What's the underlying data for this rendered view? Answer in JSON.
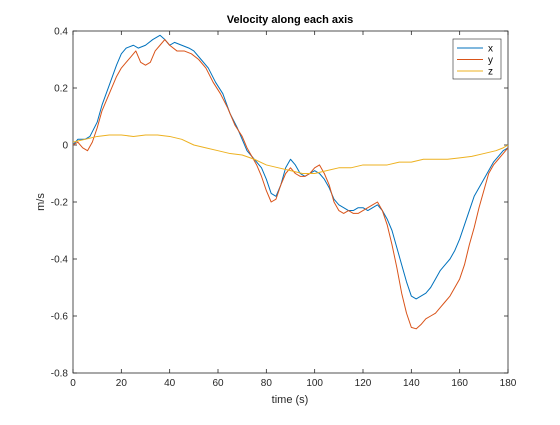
{
  "chart_data": {
    "type": "line",
    "title": "Velocity along each axis",
    "xlabel": "time (s)",
    "ylabel": "m/s",
    "xlim": [
      0,
      180
    ],
    "ylim": [
      -0.8,
      0.4
    ],
    "xticks": [
      0,
      20,
      40,
      60,
      80,
      100,
      120,
      140,
      160,
      180
    ],
    "yticks": [
      -0.8,
      -0.6,
      -0.4,
      -0.2,
      0,
      0.2,
      0.4
    ],
    "grid": false,
    "legend_position": "top-right",
    "series": [
      {
        "name": "x",
        "color": "#0072BD",
        "points": [
          [
            0,
            0.0
          ],
          [
            2,
            0.02
          ],
          [
            5,
            0.02
          ],
          [
            7,
            0.03
          ],
          [
            10,
            0.08
          ],
          [
            12,
            0.14
          ],
          [
            15,
            0.21
          ],
          [
            18,
            0.28
          ],
          [
            20,
            0.32
          ],
          [
            22,
            0.34
          ],
          [
            25,
            0.35
          ],
          [
            27,
            0.34
          ],
          [
            30,
            0.35
          ],
          [
            33,
            0.37
          ],
          [
            36,
            0.385
          ],
          [
            38,
            0.37
          ],
          [
            40,
            0.35
          ],
          [
            42,
            0.36
          ],
          [
            45,
            0.35
          ],
          [
            48,
            0.34
          ],
          [
            50,
            0.33
          ],
          [
            53,
            0.3
          ],
          [
            56,
            0.27
          ],
          [
            59,
            0.22
          ],
          [
            62,
            0.18
          ],
          [
            65,
            0.11
          ],
          [
            68,
            0.06
          ],
          [
            70,
            0.02
          ],
          [
            72,
            -0.02
          ],
          [
            75,
            -0.05
          ],
          [
            78,
            -0.08
          ],
          [
            80,
            -0.12
          ],
          [
            82,
            -0.17
          ],
          [
            84,
            -0.18
          ],
          [
            86,
            -0.14
          ],
          [
            88,
            -0.08
          ],
          [
            90,
            -0.05
          ],
          [
            92,
            -0.07
          ],
          [
            94,
            -0.1
          ],
          [
            96,
            -0.11
          ],
          [
            98,
            -0.1
          ],
          [
            100,
            -0.09
          ],
          [
            102,
            -0.1
          ],
          [
            104,
            -0.12
          ],
          [
            106,
            -0.15
          ],
          [
            108,
            -0.19
          ],
          [
            110,
            -0.21
          ],
          [
            112,
            -0.22
          ],
          [
            114,
            -0.23
          ],
          [
            116,
            -0.23
          ],
          [
            118,
            -0.22
          ],
          [
            120,
            -0.22
          ],
          [
            122,
            -0.23
          ],
          [
            124,
            -0.22
          ],
          [
            126,
            -0.21
          ],
          [
            128,
            -0.23
          ],
          [
            130,
            -0.26
          ],
          [
            132,
            -0.3
          ],
          [
            134,
            -0.36
          ],
          [
            136,
            -0.42
          ],
          [
            138,
            -0.48
          ],
          [
            140,
            -0.53
          ],
          [
            142,
            -0.54
          ],
          [
            144,
            -0.53
          ],
          [
            146,
            -0.52
          ],
          [
            148,
            -0.5
          ],
          [
            150,
            -0.47
          ],
          [
            152,
            -0.44
          ],
          [
            154,
            -0.42
          ],
          [
            156,
            -0.4
          ],
          [
            158,
            -0.37
          ],
          [
            160,
            -0.33
          ],
          [
            162,
            -0.28
          ],
          [
            164,
            -0.23
          ],
          [
            166,
            -0.18
          ],
          [
            168,
            -0.15
          ],
          [
            170,
            -0.12
          ],
          [
            172,
            -0.09
          ],
          [
            174,
            -0.06
          ],
          [
            176,
            -0.04
          ],
          [
            178,
            -0.02
          ],
          [
            180,
            -0.01
          ]
        ]
      },
      {
        "name": "y",
        "color": "#D95319",
        "points": [
          [
            0,
            0.0
          ],
          [
            2,
            0.01
          ],
          [
            4,
            -0.01
          ],
          [
            6,
            -0.02
          ],
          [
            8,
            0.01
          ],
          [
            10,
            0.06
          ],
          [
            12,
            0.12
          ],
          [
            15,
            0.18
          ],
          [
            18,
            0.24
          ],
          [
            20,
            0.27
          ],
          [
            22,
            0.29
          ],
          [
            24,
            0.31
          ],
          [
            26,
            0.33
          ],
          [
            28,
            0.29
          ],
          [
            30,
            0.28
          ],
          [
            32,
            0.29
          ],
          [
            34,
            0.33
          ],
          [
            36,
            0.35
          ],
          [
            38,
            0.37
          ],
          [
            40,
            0.35
          ],
          [
            43,
            0.33
          ],
          [
            46,
            0.33
          ],
          [
            49,
            0.32
          ],
          [
            52,
            0.3
          ],
          [
            55,
            0.27
          ],
          [
            58,
            0.22
          ],
          [
            61,
            0.18
          ],
          [
            64,
            0.13
          ],
          [
            67,
            0.07
          ],
          [
            70,
            0.03
          ],
          [
            72,
            -0.01
          ],
          [
            74,
            -0.04
          ],
          [
            76,
            -0.07
          ],
          [
            78,
            -0.11
          ],
          [
            80,
            -0.16
          ],
          [
            82,
            -0.2
          ],
          [
            84,
            -0.19
          ],
          [
            86,
            -0.14
          ],
          [
            88,
            -0.1
          ],
          [
            90,
            -0.08
          ],
          [
            92,
            -0.1
          ],
          [
            94,
            -0.11
          ],
          [
            96,
            -0.11
          ],
          [
            98,
            -0.1
          ],
          [
            100,
            -0.08
          ],
          [
            102,
            -0.07
          ],
          [
            104,
            -0.1
          ],
          [
            106,
            -0.14
          ],
          [
            108,
            -0.2
          ],
          [
            110,
            -0.23
          ],
          [
            112,
            -0.24
          ],
          [
            114,
            -0.23
          ],
          [
            116,
            -0.24
          ],
          [
            118,
            -0.24
          ],
          [
            120,
            -0.23
          ],
          [
            122,
            -0.22
          ],
          [
            124,
            -0.21
          ],
          [
            126,
            -0.2
          ],
          [
            128,
            -0.23
          ],
          [
            130,
            -0.28
          ],
          [
            132,
            -0.35
          ],
          [
            134,
            -0.43
          ],
          [
            136,
            -0.52
          ],
          [
            138,
            -0.59
          ],
          [
            140,
            -0.64
          ],
          [
            142,
            -0.645
          ],
          [
            144,
            -0.63
          ],
          [
            146,
            -0.61
          ],
          [
            148,
            -0.6
          ],
          [
            150,
            -0.59
          ],
          [
            152,
            -0.57
          ],
          [
            154,
            -0.55
          ],
          [
            156,
            -0.53
          ],
          [
            158,
            -0.5
          ],
          [
            160,
            -0.47
          ],
          [
            162,
            -0.42
          ],
          [
            164,
            -0.35
          ],
          [
            166,
            -0.29
          ],
          [
            168,
            -0.22
          ],
          [
            170,
            -0.16
          ],
          [
            172,
            -0.1
          ],
          [
            174,
            -0.07
          ],
          [
            176,
            -0.05
          ],
          [
            178,
            -0.03
          ],
          [
            180,
            -0.01
          ]
        ]
      },
      {
        "name": "z",
        "color": "#EDB120",
        "points": [
          [
            0,
            0.01
          ],
          [
            5,
            0.02
          ],
          [
            10,
            0.03
          ],
          [
            15,
            0.035
          ],
          [
            20,
            0.035
          ],
          [
            25,
            0.03
          ],
          [
            30,
            0.035
          ],
          [
            35,
            0.035
          ],
          [
            40,
            0.03
          ],
          [
            45,
            0.02
          ],
          [
            50,
            0.0
          ],
          [
            55,
            -0.01
          ],
          [
            60,
            -0.02
          ],
          [
            65,
            -0.03
          ],
          [
            70,
            -0.035
          ],
          [
            75,
            -0.05
          ],
          [
            80,
            -0.07
          ],
          [
            85,
            -0.08
          ],
          [
            90,
            -0.09
          ],
          [
            95,
            -0.1
          ],
          [
            100,
            -0.1
          ],
          [
            105,
            -0.09
          ],
          [
            110,
            -0.08
          ],
          [
            115,
            -0.08
          ],
          [
            120,
            -0.07
          ],
          [
            125,
            -0.07
          ],
          [
            130,
            -0.07
          ],
          [
            135,
            -0.06
          ],
          [
            140,
            -0.06
          ],
          [
            145,
            -0.05
          ],
          [
            150,
            -0.05
          ],
          [
            155,
            -0.05
          ],
          [
            160,
            -0.045
          ],
          [
            165,
            -0.04
          ],
          [
            170,
            -0.03
          ],
          [
            175,
            -0.02
          ],
          [
            178,
            -0.01
          ],
          [
            180,
            0.0
          ]
        ]
      }
    ]
  }
}
